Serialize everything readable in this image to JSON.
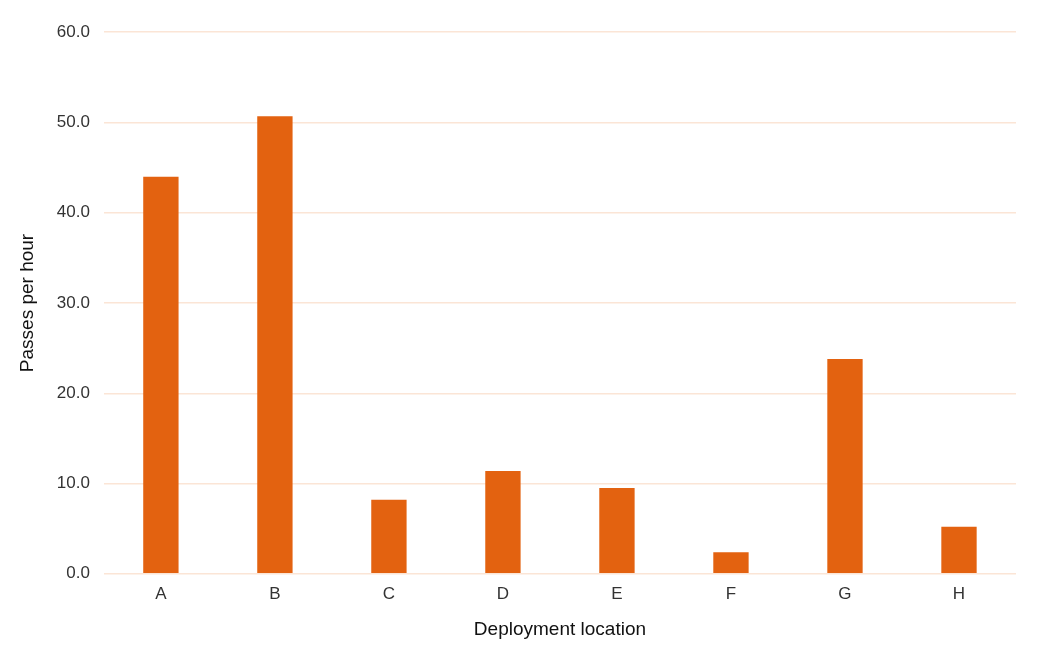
{
  "chart_data": {
    "type": "bar",
    "xlabel": "Deployment location",
    "ylabel": "Passes per hour",
    "categories": [
      "A",
      "B",
      "C",
      "D",
      "E",
      "F",
      "G",
      "H"
    ],
    "values": [
      44.0,
      50.7,
      8.2,
      11.4,
      9.5,
      2.4,
      23.8,
      5.2
    ],
    "color": "#e36210",
    "ylim": [
      0,
      60
    ],
    "yticks": [
      {
        "value": 0,
        "label": "0.0"
      },
      {
        "value": 10,
        "label": "10.0"
      },
      {
        "value": 20,
        "label": "20.0"
      },
      {
        "value": 30,
        "label": "30.0"
      },
      {
        "value": 40,
        "label": "40.0"
      },
      {
        "value": 50,
        "label": "50.0"
      },
      {
        "value": 60,
        "label": "60.0"
      }
    ],
    "grid": "y",
    "legend": false
  }
}
